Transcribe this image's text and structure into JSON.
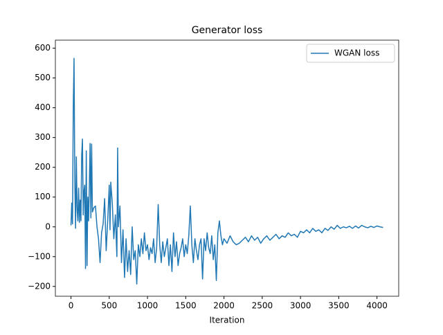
{
  "chart_data": {
    "type": "line",
    "title": "Generator loss",
    "x_label": "Iteration",
    "x": [
      0,
      10,
      20,
      30,
      40,
      50,
      60,
      70,
      80,
      90,
      100,
      110,
      120,
      130,
      140,
      150,
      160,
      170,
      180,
      190,
      200,
      210,
      220,
      230,
      240,
      250,
      260,
      270,
      280,
      300,
      320,
      340,
      360,
      380,
      400,
      420,
      440,
      460,
      480,
      500,
      510,
      520,
      540,
      560,
      580,
      600,
      610,
      620,
      640,
      660,
      680,
      700,
      720,
      740,
      760,
      780,
      800,
      820,
      840,
      860,
      880,
      900,
      920,
      940,
      960,
      980,
      1000,
      1020,
      1040,
      1060,
      1080,
      1100,
      1120,
      1140,
      1160,
      1180,
      1200,
      1220,
      1240,
      1260,
      1280,
      1300,
      1320,
      1340,
      1360,
      1380,
      1400,
      1420,
      1440,
      1460,
      1480,
      1500,
      1520,
      1540,
      1560,
      1580,
      1600,
      1620,
      1640,
      1660,
      1680,
      1700,
      1720,
      1740,
      1760,
      1780,
      1800,
      1820,
      1840,
      1860,
      1880,
      1900,
      1920,
      1940,
      1960,
      1980,
      2000,
      2040,
      2080,
      2120,
      2160,
      2200,
      2240,
      2280,
      2320,
      2360,
      2400,
      2440,
      2480,
      2520,
      2560,
      2600,
      2640,
      2680,
      2720,
      2760,
      2800,
      2840,
      2880,
      2920,
      2960,
      3000,
      3040,
      3080,
      3120,
      3160,
      3200,
      3240,
      3280,
      3320,
      3360,
      3400,
      3440,
      3480,
      3520,
      3560,
      3600,
      3640,
      3680,
      3720,
      3760,
      3800,
      3840,
      3880,
      3920,
      3960,
      4000,
      4040,
      4080
    ],
    "series": [
      {
        "name": "WGAN loss",
        "color": "#1f77b4",
        "values": [
          5,
          80,
          10,
          400,
          566,
          150,
          -5,
          235,
          60,
          20,
          130,
          15,
          90,
          20,
          240,
          295,
          40,
          120,
          140,
          -140,
          255,
          -130,
          100,
          20,
          140,
          280,
          30,
          278,
          50,
          65,
          70,
          0,
          -40,
          -120,
          -20,
          10,
          95,
          -80,
          20,
          140,
          -10,
          150,
          80,
          -40,
          40,
          -100,
          265,
          0,
          70,
          -120,
          -10,
          -170,
          -40,
          -150,
          -80,
          -160,
          0,
          -110,
          -80,
          -192,
          -60,
          -100,
          -40,
          -90,
          -20,
          -80,
          -60,
          -110,
          -70,
          -90,
          -40,
          -120,
          -70,
          75,
          -60,
          -120,
          -50,
          -100,
          -70,
          -40,
          -130,
          -60,
          -150,
          -20,
          -100,
          -50,
          -130,
          -90,
          -70,
          -40,
          -100,
          -60,
          -90,
          -30,
          70,
          -60,
          -120,
          -40,
          -80,
          -110,
          -60,
          -40,
          -175,
          -40,
          -80,
          -20,
          -70,
          -90,
          -30,
          -110,
          -60,
          -180,
          -20,
          20,
          -30,
          -60,
          -40,
          -55,
          -30,
          -50,
          -60,
          -55,
          -45,
          -35,
          -50,
          -30,
          -45,
          -35,
          -55,
          -40,
          -30,
          -45,
          -35,
          -25,
          -40,
          -30,
          -35,
          -20,
          -30,
          -25,
          -35,
          -15,
          -20,
          -10,
          -20,
          -5,
          -15,
          -10,
          -20,
          -5,
          -12,
          0,
          -8,
          5,
          -5,
          0,
          -3,
          2,
          -5,
          3,
          -4,
          5,
          0,
          -3,
          2,
          -2,
          3,
          0,
          -2
        ]
      }
    ],
    "xlim": [
      -204,
      4284
    ],
    "ylim": [
      -233,
      627
    ],
    "xticks": [
      0,
      500,
      1000,
      1500,
      2000,
      2500,
      3000,
      3500,
      4000
    ],
    "yticks": [
      {
        "value": -200,
        "label": "−200"
      },
      {
        "value": -100,
        "label": "−100"
      },
      0,
      100,
      200,
      300,
      400,
      500,
      600
    ],
    "legend": "upper right"
  }
}
